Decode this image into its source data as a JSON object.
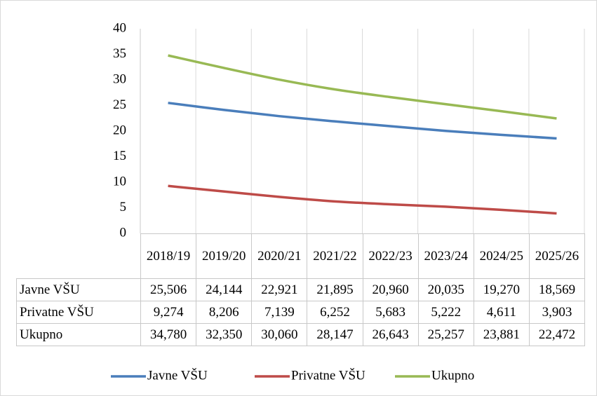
{
  "chart_data": {
    "type": "line",
    "categories": [
      "2018/19",
      "2019/20",
      "2020/21",
      "2021/22",
      "2022/23",
      "2023/24",
      "2024/25",
      "2025/26"
    ],
    "series": [
      {
        "name": "Javne VŠU",
        "color": "#4a7ebb",
        "values": [
          25.506,
          24.144,
          22.921,
          21.895,
          20.96,
          20.035,
          19.27,
          18.569
        ],
        "value_labels": [
          "25,506",
          "24,144",
          "22,921",
          "21,895",
          "20,960",
          "20,035",
          "19,270",
          "18,569"
        ]
      },
      {
        "name": "Privatne VŠU",
        "color": "#be4b48",
        "values": [
          9.274,
          8.206,
          7.139,
          6.252,
          5.683,
          5.222,
          4.611,
          3.903
        ],
        "value_labels": [
          "9,274",
          "8,206",
          "7,139",
          "6,252",
          "5,683",
          "5,222",
          "4,611",
          "3,903"
        ]
      },
      {
        "name": "Ukupno",
        "color": "#98b954",
        "values": [
          34.78,
          32.35,
          30.06,
          28.147,
          26.643,
          25.257,
          23.881,
          22.472
        ],
        "value_labels": [
          "34,780",
          "32,350",
          "30,060",
          "28,147",
          "26,643",
          "25,257",
          "23,881",
          "22,472"
        ]
      }
    ],
    "ylim": [
      0,
      40
    ],
    "yticks": [
      0,
      5,
      10,
      15,
      20,
      25,
      30,
      35,
      40
    ],
    "grid": "x",
    "legend": "bottom",
    "data_table": true
  }
}
